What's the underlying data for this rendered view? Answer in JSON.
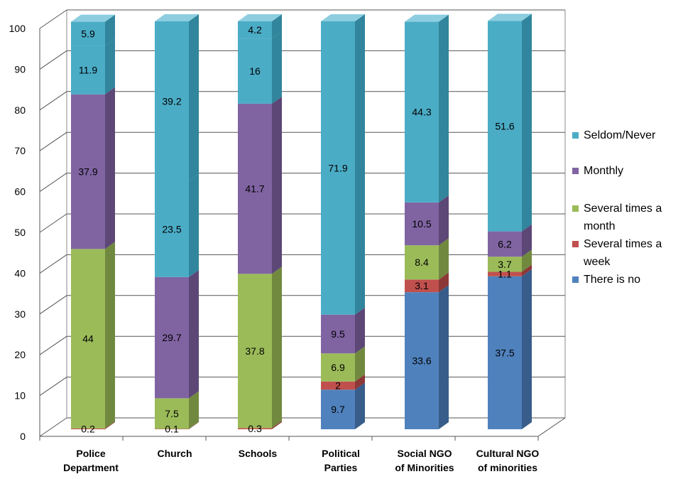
{
  "chart_data": {
    "type": "bar",
    "stacked": true,
    "three_d": true,
    "title": "",
    "xlabel": "",
    "ylabel": "",
    "ylim": [
      0,
      100
    ],
    "yticks": [
      "0",
      "10",
      "20",
      "30",
      "40",
      "50",
      "60",
      "70",
      "80",
      "90",
      "100"
    ],
    "grid": true,
    "legend_position": "right",
    "categories": [
      [
        "Police",
        "Department"
      ],
      [
        "Church"
      ],
      [
        "Schools"
      ],
      [
        "Political",
        "Parties"
      ],
      [
        "Social NGO",
        "of Minorities"
      ],
      [
        "Cultural NGO",
        "of minorities"
      ]
    ],
    "series": [
      {
        "name": [
          "There is no"
        ],
        "color": "#4f81bd",
        "side": "#385d8a",
        "top": "#7ea6d8",
        "values": [
          null,
          null,
          null,
          9.7,
          33.6,
          37.5
        ],
        "labels": [
          "",
          "",
          "",
          "9.7",
          "33.6",
          "37.5"
        ]
      },
      {
        "name": [
          "Several times a",
          "week"
        ],
        "color": "#c0504d",
        "side": "#8c3836",
        "top": "#d98583",
        "values": [
          0.2,
          0.1,
          0.3,
          2,
          3.1,
          1.1
        ],
        "labels": [
          "0.2",
          "0.1",
          "0.3",
          "2",
          "3.1",
          "1.1"
        ]
      },
      {
        "name": [
          "Several times a",
          "month"
        ],
        "color": "#9bbb59",
        "side": "#71893f",
        "top": "#bdd48c",
        "values": [
          44,
          7.5,
          37.8,
          6.9,
          8.4,
          3.7
        ],
        "labels": [
          "44",
          "7.5",
          "37.8",
          "6.9",
          "8.4",
          "3.7"
        ]
      },
      {
        "name": [
          "Monthly"
        ],
        "color": "#8064a2",
        "side": "#5c4776",
        "top": "#a690c2",
        "values": [
          37.9,
          29.7,
          41.7,
          9.5,
          10.5,
          6.2
        ],
        "labels": [
          "37.9",
          "29.7",
          "41.7",
          "9.5",
          "10.5",
          "6.2"
        ]
      },
      {
        "name": [
          "Seldom/Never"
        ],
        "color": "#4bacc6",
        "side": "#31859c",
        "top": "#8ccee0",
        "values": [
          11.9,
          23.5,
          16,
          71.9,
          44.3,
          51.6
        ],
        "labels": [
          "11.9",
          "23.5",
          "16",
          "71.9",
          "44.3",
          "51.6"
        ]
      },
      {
        "name": [
          ""
        ],
        "color": "#4bacc6",
        "side": "#31859c",
        "top": "#8ccee0",
        "values": [
          5.9,
          39.2,
          4.2,
          null,
          null,
          null
        ],
        "labels": [
          "5.9",
          "39.2",
          "4.2",
          "",
          "",
          ""
        ]
      }
    ]
  }
}
